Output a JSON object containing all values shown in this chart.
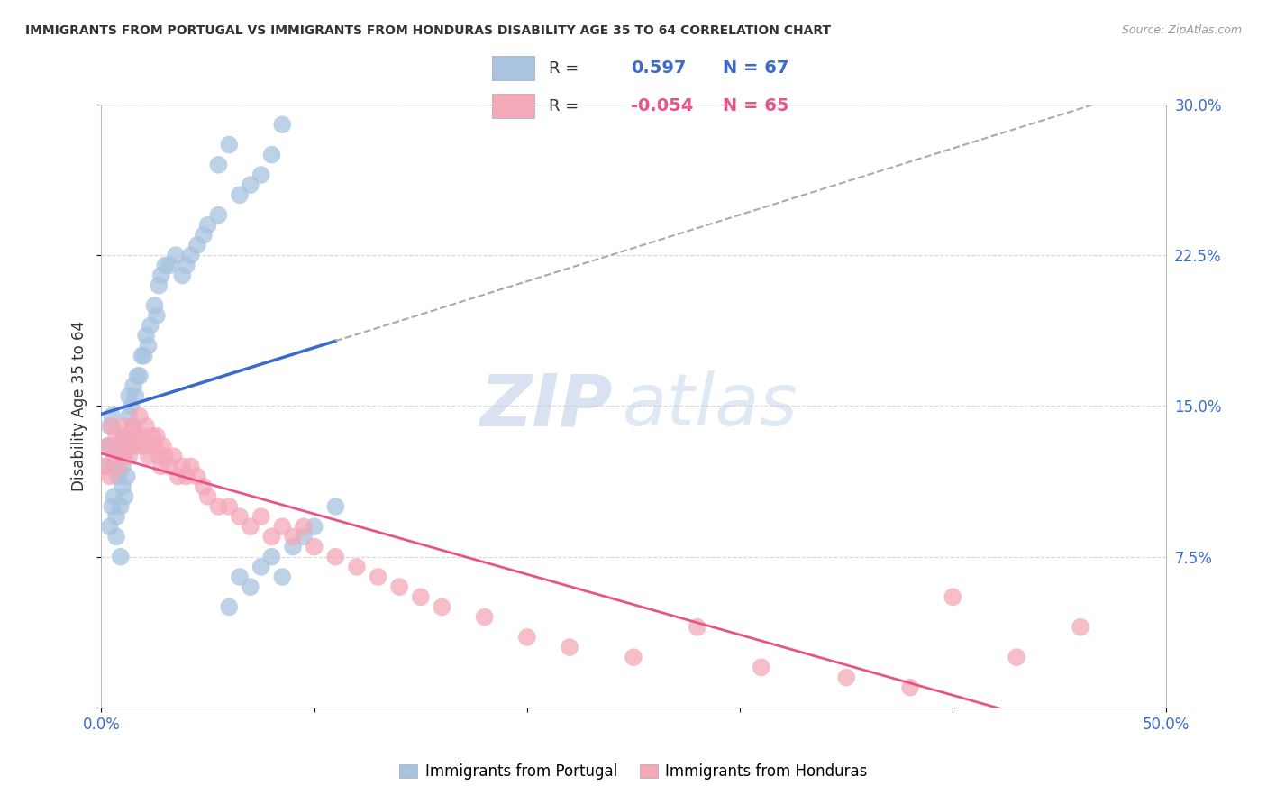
{
  "title": "IMMIGRANTS FROM PORTUGAL VS IMMIGRANTS FROM HONDURAS DISABILITY AGE 35 TO 64 CORRELATION CHART",
  "source": "Source: ZipAtlas.com",
  "ylabel": "Disability Age 35 to 64",
  "xlim": [
    0.0,
    0.5
  ],
  "ylim": [
    0.0,
    0.3
  ],
  "portugal_color": "#a8c4e0",
  "honduras_color": "#f4a8b8",
  "portugal_line_color": "#3a6bcc",
  "honduras_line_color": "#e8538a",
  "r_portugal": 0.597,
  "n_portugal": 67,
  "r_honduras": -0.054,
  "n_honduras": 65,
  "watermark_zip": "ZIP",
  "watermark_atlas": "atlas",
  "background_color": "#ffffff",
  "grid_color": "#d8d8d8",
  "legend_portugal_label": "Immigrants from Portugal",
  "legend_honduras_label": "Immigrants from Honduras",
  "portugal_x": [
    0.002,
    0.003,
    0.004,
    0.004,
    0.005,
    0.005,
    0.005,
    0.006,
    0.006,
    0.007,
    0.007,
    0.008,
    0.008,
    0.009,
    0.009,
    0.01,
    0.01,
    0.01,
    0.011,
    0.011,
    0.012,
    0.012,
    0.013,
    0.013,
    0.014,
    0.014,
    0.015,
    0.015,
    0.016,
    0.017,
    0.018,
    0.019,
    0.02,
    0.021,
    0.022,
    0.023,
    0.025,
    0.026,
    0.027,
    0.028,
    0.03,
    0.032,
    0.035,
    0.038,
    0.04,
    0.042,
    0.045,
    0.048,
    0.05,
    0.055,
    0.06,
    0.065,
    0.07,
    0.075,
    0.08,
    0.085,
    0.09,
    0.095,
    0.1,
    0.11,
    0.055,
    0.06,
    0.065,
    0.07,
    0.075,
    0.08,
    0.085
  ],
  "portugal_y": [
    0.12,
    0.13,
    0.09,
    0.14,
    0.1,
    0.13,
    0.145,
    0.105,
    0.12,
    0.085,
    0.095,
    0.115,
    0.13,
    0.075,
    0.1,
    0.11,
    0.12,
    0.135,
    0.105,
    0.125,
    0.115,
    0.135,
    0.145,
    0.155,
    0.13,
    0.15,
    0.14,
    0.16,
    0.155,
    0.165,
    0.165,
    0.175,
    0.175,
    0.185,
    0.18,
    0.19,
    0.2,
    0.195,
    0.21,
    0.215,
    0.22,
    0.22,
    0.225,
    0.215,
    0.22,
    0.225,
    0.23,
    0.235,
    0.24,
    0.245,
    0.05,
    0.065,
    0.06,
    0.07,
    0.075,
    0.065,
    0.08,
    0.085,
    0.09,
    0.1,
    0.27,
    0.28,
    0.255,
    0.26,
    0.265,
    0.275,
    0.29
  ],
  "honduras_x": [
    0.002,
    0.003,
    0.004,
    0.005,
    0.006,
    0.007,
    0.008,
    0.009,
    0.01,
    0.011,
    0.012,
    0.013,
    0.014,
    0.015,
    0.016,
    0.017,
    0.018,
    0.019,
    0.02,
    0.021,
    0.022,
    0.023,
    0.024,
    0.025,
    0.026,
    0.027,
    0.028,
    0.029,
    0.03,
    0.032,
    0.034,
    0.036,
    0.038,
    0.04,
    0.042,
    0.045,
    0.048,
    0.05,
    0.055,
    0.06,
    0.065,
    0.07,
    0.075,
    0.08,
    0.085,
    0.09,
    0.095,
    0.1,
    0.11,
    0.12,
    0.13,
    0.14,
    0.15,
    0.16,
    0.18,
    0.2,
    0.22,
    0.25,
    0.28,
    0.31,
    0.35,
    0.38,
    0.4,
    0.43,
    0.46
  ],
  "honduras_y": [
    0.12,
    0.13,
    0.115,
    0.14,
    0.125,
    0.135,
    0.12,
    0.13,
    0.125,
    0.14,
    0.135,
    0.125,
    0.13,
    0.14,
    0.135,
    0.13,
    0.145,
    0.135,
    0.13,
    0.14,
    0.125,
    0.13,
    0.135,
    0.13,
    0.135,
    0.125,
    0.12,
    0.13,
    0.125,
    0.12,
    0.125,
    0.115,
    0.12,
    0.115,
    0.12,
    0.115,
    0.11,
    0.105,
    0.1,
    0.1,
    0.095,
    0.09,
    0.095,
    0.085,
    0.09,
    0.085,
    0.09,
    0.08,
    0.075,
    0.07,
    0.065,
    0.06,
    0.055,
    0.05,
    0.045,
    0.035,
    0.03,
    0.025,
    0.04,
    0.02,
    0.015,
    0.01,
    0.055,
    0.025,
    0.04
  ]
}
